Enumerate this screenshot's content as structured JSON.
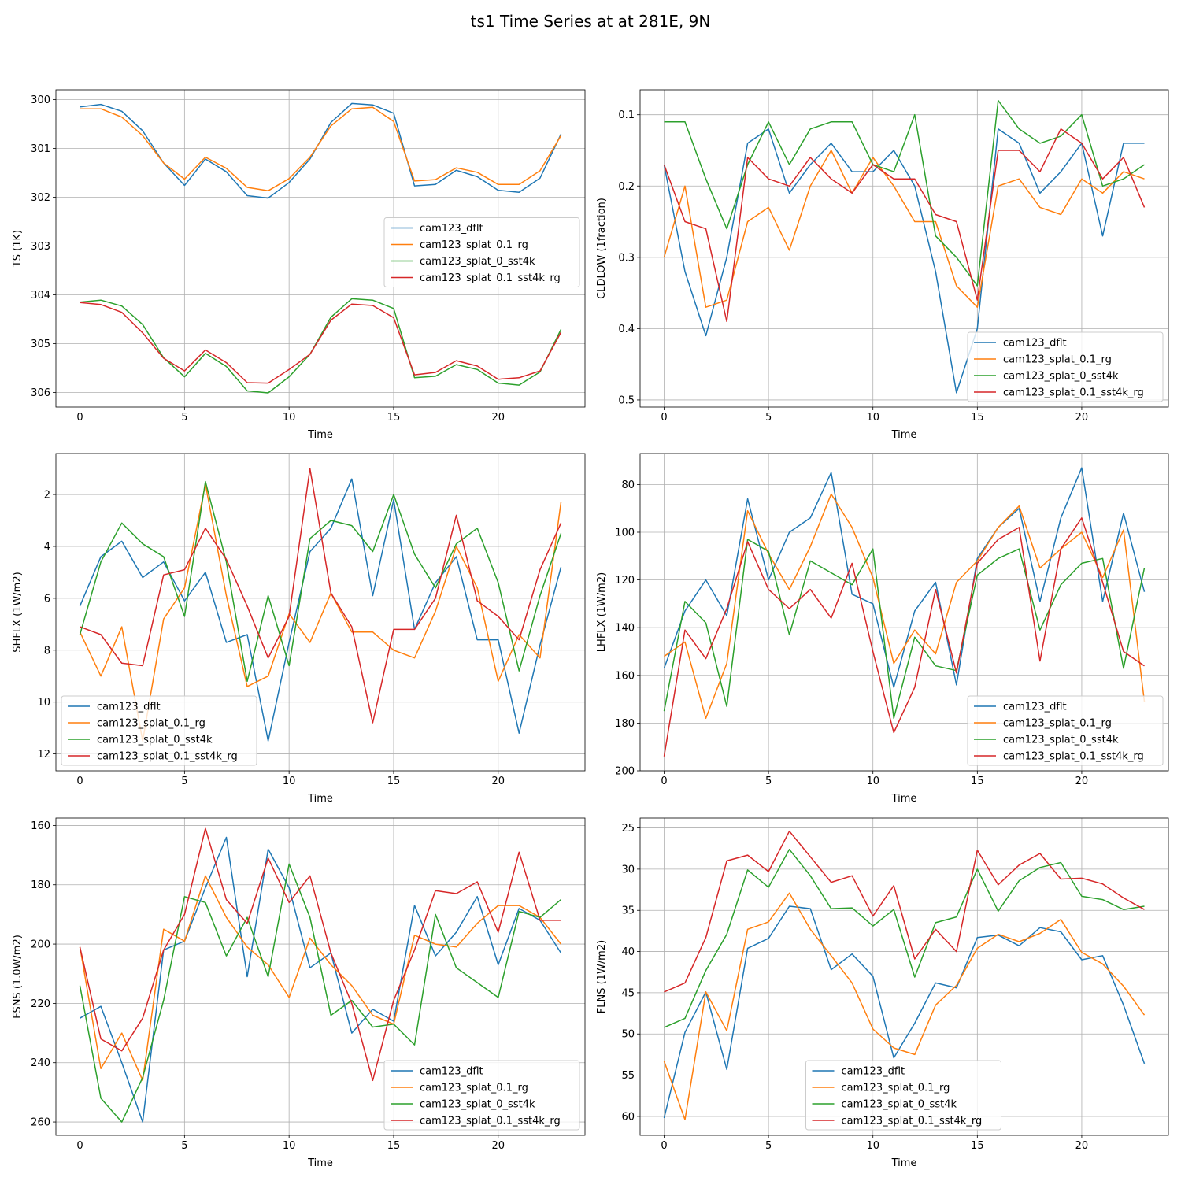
{
  "figure": {
    "title": "ts1 Time Series at at 281E, 9N"
  },
  "colors": {
    "cam123_dflt": "#1f77b4",
    "cam123_splat_0.1_rg": "#ff7f0e",
    "cam123_splat_0_sst4k": "#2ca02c",
    "cam123_splat_0.1_sst4k_rg": "#d62728"
  },
  "chart_data": [
    {
      "type": "line",
      "id": "ts",
      "xlabel": "Time",
      "ylabel": "TS (1K)",
      "xlim": [
        -1.15,
        24.15
      ],
      "ylim": [
        306.3,
        299.8
      ],
      "yinverted": true,
      "xticks": [
        0,
        5,
        10,
        15,
        20
      ],
      "yticks": [
        300,
        301,
        302,
        303,
        304,
        305,
        306
      ],
      "legend_loc": "center right",
      "x": [
        0,
        1,
        2,
        3,
        4,
        5,
        6,
        7,
        8,
        9,
        10,
        11,
        12,
        13,
        14,
        15,
        16,
        17,
        18,
        19,
        20,
        21,
        22,
        23
      ],
      "series": [
        {
          "name": "cam123_dflt",
          "color": "#1f77b4",
          "values": [
            300.15,
            300.1,
            300.24,
            300.64,
            301.3,
            301.76,
            301.22,
            301.48,
            301.97,
            302.02,
            301.7,
            301.22,
            300.47,
            300.08,
            300.11,
            300.28,
            301.77,
            301.74,
            301.45,
            301.58,
            301.86,
            301.9,
            301.61,
            300.71
          ]
        },
        {
          "name": "cam123_splat_0.1_rg",
          "color": "#ff7f0e",
          "values": [
            300.19,
            300.19,
            300.36,
            300.74,
            301.3,
            301.63,
            301.18,
            301.41,
            301.8,
            301.87,
            301.62,
            301.18,
            300.54,
            300.19,
            300.16,
            300.45,
            301.67,
            301.64,
            301.4,
            301.49,
            301.74,
            301.74,
            301.46,
            300.74
          ]
        },
        {
          "name": "cam123_splat_0_sst4k",
          "color": "#2ca02c",
          "values": [
            304.15,
            304.11,
            304.23,
            304.61,
            305.29,
            305.68,
            305.2,
            305.47,
            305.97,
            306.01,
            305.68,
            305.22,
            304.46,
            304.08,
            304.11,
            304.28,
            305.7,
            305.67,
            305.43,
            305.53,
            305.81,
            305.85,
            305.58,
            304.71
          ]
        },
        {
          "name": "cam123_splat_0.1_sst4k_rg",
          "color": "#d62728",
          "values": [
            304.16,
            304.2,
            304.36,
            304.78,
            305.3,
            305.56,
            305.13,
            305.39,
            305.8,
            305.81,
            305.53,
            305.22,
            304.52,
            304.19,
            304.22,
            304.47,
            305.64,
            305.59,
            305.35,
            305.46,
            305.73,
            305.7,
            305.56,
            304.77
          ]
        }
      ]
    },
    {
      "type": "line",
      "id": "cldlow",
      "xlabel": "Time",
      "ylabel": "CLDLOW (1fraction)",
      "xlim": [
        -1.15,
        24.15
      ],
      "ylim": [
        0.51,
        0.065
      ],
      "yinverted": true,
      "xticks": [
        0,
        5,
        10,
        15,
        20
      ],
      "yticks": [
        0.1,
        0.2,
        0.3,
        0.4,
        0.5
      ],
      "legend_loc": "lower right",
      "x": [
        0,
        1,
        2,
        3,
        4,
        5,
        6,
        7,
        8,
        9,
        10,
        11,
        12,
        13,
        14,
        15,
        16,
        17,
        18,
        19,
        20,
        21,
        22,
        23
      ],
      "series": [
        {
          "name": "cam123_dflt",
          "color": "#1f77b4",
          "values": [
            0.17,
            0.32,
            0.41,
            0.3,
            0.14,
            0.12,
            0.21,
            0.17,
            0.14,
            0.18,
            0.18,
            0.15,
            0.2,
            0.32,
            0.49,
            0.4,
            0.12,
            0.14,
            0.21,
            0.18,
            0.14,
            0.27,
            0.14,
            0.14
          ]
        },
        {
          "name": "cam123_splat_0.1_rg",
          "color": "#ff7f0e",
          "values": [
            0.3,
            0.2,
            0.37,
            0.36,
            0.25,
            0.23,
            0.29,
            0.2,
            0.15,
            0.21,
            0.16,
            0.2,
            0.25,
            0.25,
            0.34,
            0.37,
            0.2,
            0.19,
            0.23,
            0.24,
            0.19,
            0.21,
            0.18,
            0.19
          ]
        },
        {
          "name": "cam123_splat_0_sst4k",
          "color": "#2ca02c",
          "values": [
            0.11,
            0.11,
            0.19,
            0.26,
            0.17,
            0.11,
            0.17,
            0.12,
            0.11,
            0.11,
            0.17,
            0.18,
            0.1,
            0.27,
            0.3,
            0.34,
            0.08,
            0.12,
            0.14,
            0.13,
            0.1,
            0.2,
            0.19,
            0.17
          ]
        },
        {
          "name": "cam123_splat_0.1_sst4k_rg",
          "color": "#d62728",
          "values": [
            0.17,
            0.25,
            0.26,
            0.39,
            0.16,
            0.19,
            0.2,
            0.16,
            0.19,
            0.21,
            0.17,
            0.19,
            0.19,
            0.24,
            0.25,
            0.36,
            0.15,
            0.15,
            0.18,
            0.12,
            0.14,
            0.19,
            0.16,
            0.23
          ]
        }
      ]
    },
    {
      "type": "line",
      "id": "shflx",
      "xlabel": "Time",
      "ylabel": "SHFLX (1W/m2)",
      "xlim": [
        -1.15,
        24.15
      ],
      "ylim": [
        12.65,
        0.42
      ],
      "yinverted": true,
      "xticks": [
        0,
        5,
        10,
        15,
        20
      ],
      "yticks": [
        2,
        4,
        6,
        8,
        10,
        12
      ],
      "legend_loc": "lower left",
      "x": [
        0,
        1,
        2,
        3,
        4,
        5,
        6,
        7,
        8,
        9,
        10,
        11,
        12,
        13,
        14,
        15,
        16,
        17,
        18,
        19,
        20,
        21,
        22,
        23
      ],
      "series": [
        {
          "name": "cam123_dflt",
          "color": "#1f77b4",
          "values": [
            6.3,
            4.4,
            3.8,
            5.2,
            4.6,
            6.1,
            5.0,
            7.7,
            7.4,
            11.5,
            7.7,
            4.2,
            3.3,
            1.4,
            5.9,
            2.2,
            7.2,
            5.4,
            4.4,
            7.6,
            7.6,
            11.2,
            7.8,
            4.8
          ]
        },
        {
          "name": "cam123_splat_0.1_rg",
          "color": "#ff7f0e",
          "values": [
            7.3,
            9.0,
            7.1,
            11.5,
            6.8,
            5.6,
            1.6,
            5.9,
            9.4,
            9.0,
            6.6,
            7.7,
            5.8,
            7.3,
            7.3,
            8.0,
            8.3,
            6.5,
            4.0,
            5.6,
            9.2,
            7.4,
            8.3,
            2.3
          ]
        },
        {
          "name": "cam123_splat_0_sst4k",
          "color": "#2ca02c",
          "values": [
            7.4,
            4.6,
            3.1,
            3.9,
            4.4,
            6.7,
            1.5,
            4.6,
            9.2,
            5.9,
            8.6,
            3.7,
            3.0,
            3.2,
            4.2,
            2.0,
            4.3,
            5.6,
            3.9,
            3.3,
            5.4,
            8.8,
            5.9,
            3.5
          ]
        },
        {
          "name": "cam123_splat_0.1_sst4k_rg",
          "color": "#d62728",
          "values": [
            7.1,
            7.4,
            8.5,
            8.6,
            5.1,
            4.9,
            3.3,
            4.5,
            6.3,
            8.3,
            6.7,
            1.0,
            5.8,
            7.1,
            10.8,
            7.2,
            7.2,
            6.0,
            2.8,
            6.1,
            6.7,
            7.6,
            4.9,
            3.1
          ]
        }
      ]
    },
    {
      "type": "line",
      "id": "lhflx",
      "xlabel": "Time",
      "ylabel": "LHFLX (1W/m2)",
      "xlim": [
        -1.15,
        24.15
      ],
      "ylim": [
        200,
        67
      ],
      "yinverted": true,
      "xticks": [
        0,
        5,
        10,
        15,
        20
      ],
      "yticks": [
        80,
        100,
        120,
        140,
        160,
        180,
        200
      ],
      "legend_loc": "lower right",
      "x": [
        0,
        1,
        2,
        3,
        4,
        5,
        6,
        7,
        8,
        9,
        10,
        11,
        12,
        13,
        14,
        15,
        16,
        17,
        18,
        19,
        20,
        21,
        22,
        23
      ],
      "series": [
        {
          "name": "cam123_dflt",
          "color": "#1f77b4",
          "values": [
            157,
            133,
            120,
            135,
            86,
            120,
            100,
            94,
            75,
            126,
            130,
            165,
            133,
            121,
            164,
            111,
            98,
            90,
            129,
            94,
            73,
            129,
            92,
            125
          ]
        },
        {
          "name": "cam123_splat_0.1_rg",
          "color": "#ff7f0e",
          "values": [
            152,
            146,
            178,
            155,
            91,
            109,
            124,
            106,
            84,
            98,
            119,
            155,
            141,
            151,
            121,
            112,
            98,
            89,
            115,
            107,
            100,
            119,
            99,
            171
          ]
        },
        {
          "name": "cam123_splat_0_sst4k",
          "color": "#2ca02c",
          "values": [
            175,
            129,
            138,
            173,
            103,
            108,
            143,
            112,
            117,
            122,
            107,
            178,
            144,
            156,
            158,
            118,
            111,
            107,
            141,
            122,
            113,
            111,
            157,
            115
          ]
        },
        {
          "name": "cam123_splat_0.1_sst4k_rg",
          "color": "#d62728",
          "values": [
            194,
            141,
            153,
            132,
            104,
            124,
            132,
            124,
            136,
            113,
            150,
            184,
            165,
            124,
            159,
            113,
            103,
            98,
            154,
            107,
            94,
            121,
            150,
            156
          ]
        }
      ]
    },
    {
      "type": "line",
      "id": "fsns",
      "xlabel": "Time",
      "ylabel": "FSNS (1.0W/m2)",
      "xlim": [
        -1.15,
        24.15
      ],
      "ylim": [
        264.5,
        157.5
      ],
      "yinverted": true,
      "xticks": [
        0,
        5,
        10,
        15,
        20
      ],
      "yticks": [
        160,
        180,
        200,
        220,
        240,
        260
      ],
      "legend_loc": "lower right",
      "x": [
        0,
        1,
        2,
        3,
        4,
        5,
        6,
        7,
        8,
        9,
        10,
        11,
        12,
        13,
        14,
        15,
        16,
        17,
        18,
        19,
        20,
        21,
        22,
        23
      ],
      "series": [
        {
          "name": "cam123_dflt",
          "color": "#1f77b4",
          "values": [
            225,
            221,
            240,
            260,
            202,
            199,
            181,
            164,
            211,
            168,
            181,
            208,
            203,
            230,
            222,
            226,
            187,
            204,
            196,
            184,
            207,
            188,
            192,
            203
          ]
        },
        {
          "name": "cam123_splat_0.1_rg",
          "color": "#ff7f0e",
          "values": [
            201,
            242,
            230,
            246,
            195,
            199,
            177,
            191,
            201,
            207,
            218,
            198,
            207,
            214,
            224,
            227,
            197,
            200,
            201,
            193,
            187,
            187,
            191,
            200
          ]
        },
        {
          "name": "cam123_splat_0_sst4k",
          "color": "#2ca02c",
          "values": [
            214,
            252,
            260,
            245,
            219,
            184,
            186,
            204,
            191,
            211,
            173,
            191,
            224,
            219,
            228,
            227,
            234,
            190,
            208,
            213,
            218,
            189,
            191,
            185
          ]
        },
        {
          "name": "cam123_splat_0.1_sst4k_rg",
          "color": "#d62728",
          "values": [
            201,
            232,
            236,
            225,
            202,
            190,
            161,
            185,
            193,
            171,
            186,
            177,
            203,
            220,
            246,
            219,
            202,
            182,
            183,
            179,
            196,
            169,
            192,
            192
          ]
        }
      ]
    },
    {
      "type": "line",
      "id": "flns",
      "xlabel": "Time",
      "ylabel": "FLNS (1W/m2)",
      "xlim": [
        -1.15,
        24.15
      ],
      "ylim": [
        62.3,
        23.8
      ],
      "yinverted": true,
      "xticks": [
        0,
        5,
        10,
        15,
        20
      ],
      "yticks": [
        25,
        30,
        35,
        40,
        45,
        50,
        55,
        60
      ],
      "legend_loc": "lower center",
      "x": [
        0,
        1,
        2,
        3,
        4,
        5,
        6,
        7,
        8,
        9,
        10,
        11,
        12,
        13,
        14,
        15,
        16,
        17,
        18,
        19,
        20,
        21,
        22,
        23
      ],
      "series": [
        {
          "name": "cam123_dflt",
          "color": "#1f77b4",
          "values": [
            60.2,
            49.8,
            44.9,
            54.3,
            39.6,
            38.4,
            34.5,
            34.8,
            42.2,
            40.3,
            43.0,
            52.9,
            48.7,
            43.8,
            44.4,
            38.3,
            38.0,
            39.3,
            37.1,
            37.6,
            41.0,
            40.5,
            46.5,
            53.6
          ]
        },
        {
          "name": "cam123_splat_0.1_rg",
          "color": "#ff7f0e",
          "values": [
            53.3,
            60.4,
            44.9,
            49.6,
            37.3,
            36.4,
            32.9,
            37.3,
            40.5,
            43.8,
            49.4,
            51.7,
            52.5,
            46.5,
            44.1,
            39.6,
            37.9,
            38.8,
            37.8,
            36.1,
            40.1,
            41.5,
            44.2,
            47.7
          ]
        },
        {
          "name": "cam123_splat_0_sst4k",
          "color": "#2ca02c",
          "values": [
            49.2,
            48.1,
            42.3,
            37.9,
            30.1,
            32.2,
            27.6,
            30.8,
            34.8,
            34.7,
            36.9,
            34.9,
            43.1,
            36.5,
            35.8,
            30.0,
            35.1,
            31.4,
            29.8,
            29.2,
            33.3,
            33.7,
            34.9,
            34.5
          ]
        },
        {
          "name": "cam123_splat_0.1_sst4k_rg",
          "color": "#d62728",
          "values": [
            44.9,
            43.8,
            38.3,
            29.0,
            28.3,
            30.3,
            25.4,
            28.5,
            31.6,
            30.8,
            35.7,
            32.0,
            40.9,
            37.3,
            40.0,
            27.7,
            31.9,
            29.5,
            28.1,
            31.2,
            31.1,
            31.8,
            33.5,
            34.9
          ]
        }
      ]
    }
  ]
}
